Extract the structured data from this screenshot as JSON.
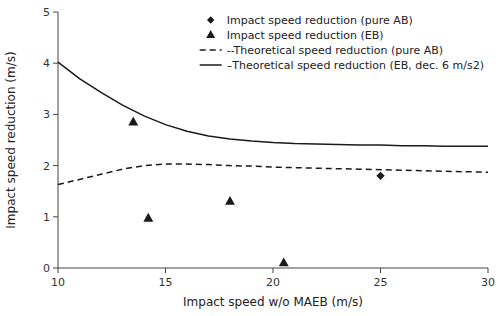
{
  "chart_data": {
    "type": "line",
    "xlabel": "Impact speed w/o MAEB (m/s)",
    "ylabel": "Impact speed reduction (m/s)",
    "xlim": [
      10,
      30
    ],
    "ylim": [
      0,
      5
    ],
    "xticks": [
      10,
      15,
      20,
      25,
      30
    ],
    "yticks": [
      0,
      1,
      2,
      3,
      4,
      5
    ],
    "grid": false,
    "legend": "upper right",
    "series": [
      {
        "name": "Impact speed reduction (pure AB)",
        "type": "scatter",
        "marker": "diamond",
        "color": "#1a1a1a",
        "x": [
          25.0
        ],
        "values": [
          1.8
        ]
      },
      {
        "name": "Impact speed reduction (EB)",
        "type": "scatter",
        "marker": "triangle",
        "color": "#1a1a1a",
        "x": [
          13.5,
          14.2,
          18.0,
          20.5
        ],
        "values": [
          2.85,
          0.97,
          1.3,
          0.1
        ]
      },
      {
        "name": "--Theoretical speed reduction (pure AB)",
        "type": "line",
        "line_style": "dashed",
        "color": "#1a1a1a",
        "x": [
          10,
          11,
          12,
          13,
          14,
          15,
          16,
          17,
          18,
          19,
          20,
          21,
          22,
          23,
          24,
          25,
          26,
          27,
          28,
          29,
          30
        ],
        "values": [
          1.63,
          1.73,
          1.83,
          1.93,
          2.0,
          2.03,
          2.03,
          2.02,
          2.0,
          1.99,
          1.97,
          1.96,
          1.95,
          1.94,
          1.93,
          1.92,
          1.91,
          1.9,
          1.89,
          1.88,
          1.87
        ]
      },
      {
        "name": "–Theoretical speed reduction (EB, dec. 6 m/s2)",
        "type": "line",
        "line_style": "solid",
        "color": "#1a1a1a",
        "x": [
          10,
          11,
          12,
          13,
          14,
          15,
          16,
          17,
          18,
          19,
          20,
          21,
          22,
          23,
          24,
          25,
          26,
          27,
          28,
          29,
          30
        ],
        "values": [
          4.02,
          3.7,
          3.43,
          3.18,
          2.97,
          2.8,
          2.67,
          2.58,
          2.52,
          2.48,
          2.45,
          2.43,
          2.42,
          2.41,
          2.4,
          2.4,
          2.39,
          2.39,
          2.38,
          2.38,
          2.38
        ]
      }
    ]
  }
}
